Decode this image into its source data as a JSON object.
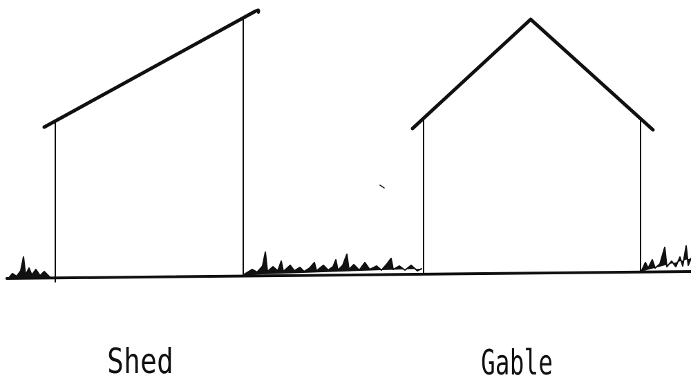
{
  "diagrams": [
    {
      "label": "Shed"
    },
    {
      "label": "Gable"
    }
  ]
}
